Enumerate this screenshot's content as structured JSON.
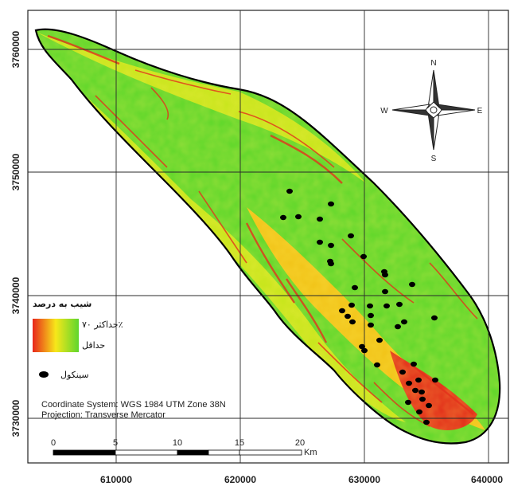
{
  "map": {
    "x_ticks": [
      "610000",
      "620000",
      "630000",
      "640000"
    ],
    "y_ticks": [
      "3760000",
      "3750000",
      "3740000",
      "3730000"
    ]
  },
  "north_arrow": {
    "n": "N",
    "s": "S",
    "e": "E",
    "w": "W"
  },
  "legend": {
    "title": "شیب به درصد",
    "max_label": "حداکثر ۷۰٪",
    "min_label": "حداقل",
    "point_label": "سینکول",
    "ramp_colors": [
      "#e8261b",
      "#f7e71a",
      "#5fd62d"
    ],
    "point_color": "#000000"
  },
  "info": {
    "coordinate_system": "Coordinate System: WGS 1984 UTM Zone 38N",
    "projection": "Projection: Transverse Mercator"
  },
  "scale_bar": {
    "labels": [
      "0",
      "5",
      "10",
      "15",
      "20"
    ],
    "unit": "Km"
  },
  "surface_colors": {
    "low": "#62d82c",
    "mid": "#c9e61d",
    "high": "#f2c51a",
    "very_high": "#e3311b",
    "outline": "#000000"
  },
  "sinkholes": {
    "count": 44
  }
}
